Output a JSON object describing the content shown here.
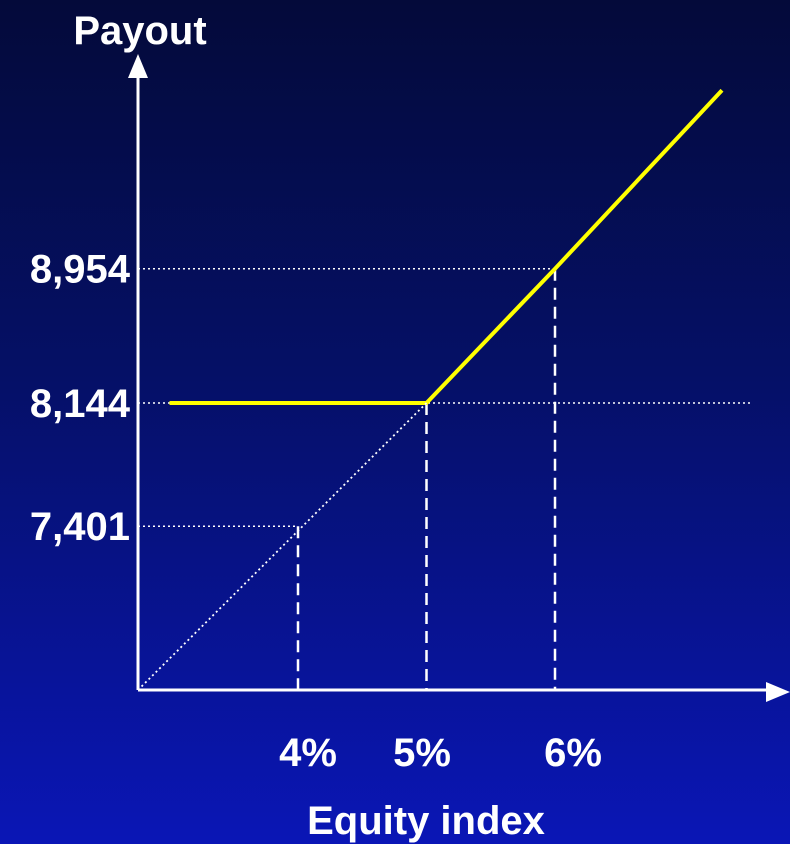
{
  "chart_data": {
    "type": "line",
    "title": "",
    "xlabel": "Equity index",
    "ylabel": "Payout",
    "x_ticks": [
      {
        "label": "4%",
        "value": 4
      },
      {
        "label": "5%",
        "value": 5
      },
      {
        "label": "6%",
        "value": 6
      }
    ],
    "y_ticks": [
      {
        "label": "7,401",
        "value": 7401
      },
      {
        "label": "8,144",
        "value": 8144
      },
      {
        "label": "8,954",
        "value": 8954
      }
    ],
    "series": [
      {
        "style": "solid",
        "color": "#ffff00",
        "points": [
          [
            3.0,
            8144
          ],
          [
            5.0,
            8144
          ],
          [
            6.0,
            8954
          ],
          [
            7.3,
            10030
          ]
        ]
      },
      {
        "style": "dotted",
        "color": "#ffffff",
        "points": [
          [
            3.0,
            5900
          ],
          [
            5.0,
            8144
          ]
        ]
      }
    ],
    "guides": [
      {
        "x": 4,
        "y": 7401
      },
      {
        "x": 5,
        "y": 8144
      },
      {
        "x": 6,
        "y": 8954
      }
    ],
    "grid": false,
    "legend": "none"
  }
}
